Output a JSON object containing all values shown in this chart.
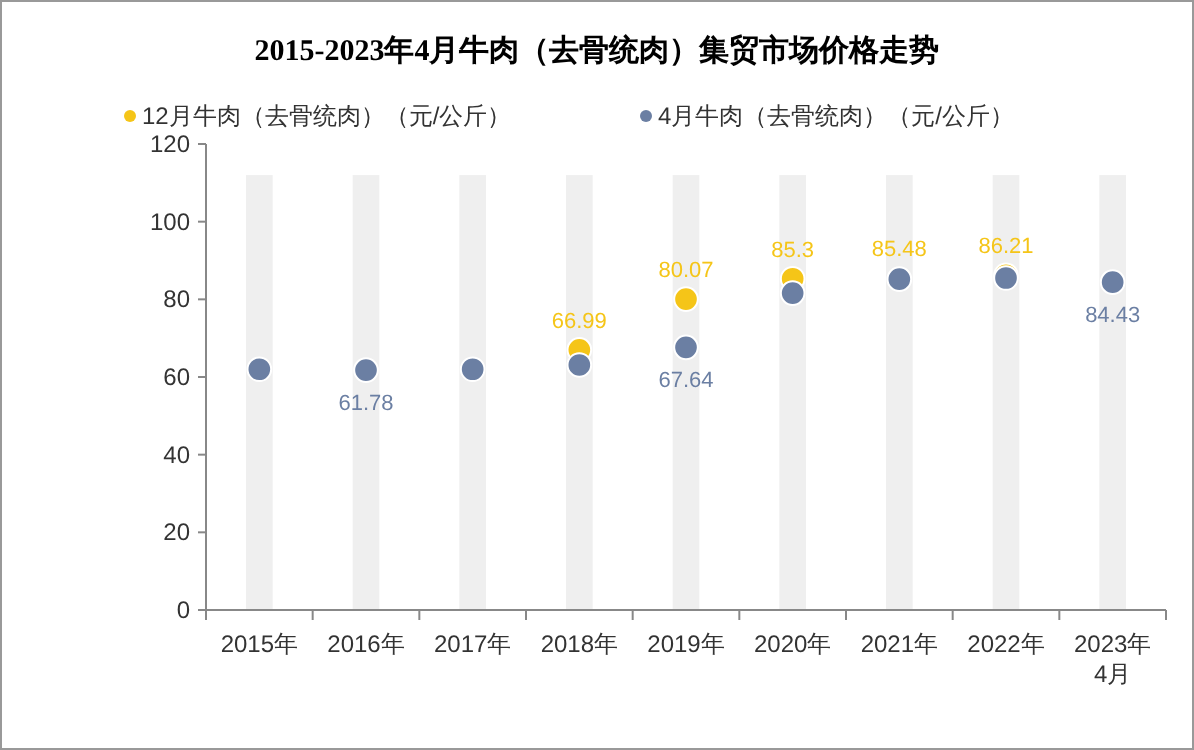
{
  "chart_data": {
    "type": "scatter",
    "title": "2015-2023年4月牛肉（去骨统肉）集贸市场价格走势",
    "categories": [
      "2015年",
      "2016年",
      "2017年",
      "2018年",
      "2019年",
      "2020年",
      "2021年",
      "2022年",
      "2023年\n4月"
    ],
    "series": [
      {
        "type": "bar",
        "color": "#efefef",
        "values": [
          112,
          112,
          112,
          112,
          112,
          112,
          112,
          112,
          112
        ]
      },
      {
        "name": "12月牛肉（去骨统肉）（元/公斤）",
        "color": "#f5c518",
        "values": [
          null,
          null,
          null,
          66.99,
          80.07,
          85.3,
          null,
          86.21,
          null
        ],
        "value_labels": [
          null,
          null,
          null,
          "66.99",
          "80.07",
          "85.3",
          null,
          "86.21",
          null
        ]
      },
      {
        "name": "4月牛肉（去骨统肉）（元/公斤）",
        "color": "#6b7fa3",
        "values": [
          62,
          61.78,
          62,
          63.1,
          67.64,
          81.6,
          85.2,
          85.5,
          84.43
        ],
        "value_labels": [
          null,
          "61.78",
          null,
          null,
          "67.64",
          null,
          null,
          null,
          "84.43"
        ]
      }
    ],
    "annotations": [
      {
        "text": "85.48",
        "x": "2021年",
        "y": 85.48
      }
    ],
    "ylim": [
      0,
      120
    ],
    "yticks": [
      0,
      20,
      40,
      60,
      80,
      100,
      120
    ],
    "grid": false,
    "legend": "top",
    "marker": "circle"
  }
}
